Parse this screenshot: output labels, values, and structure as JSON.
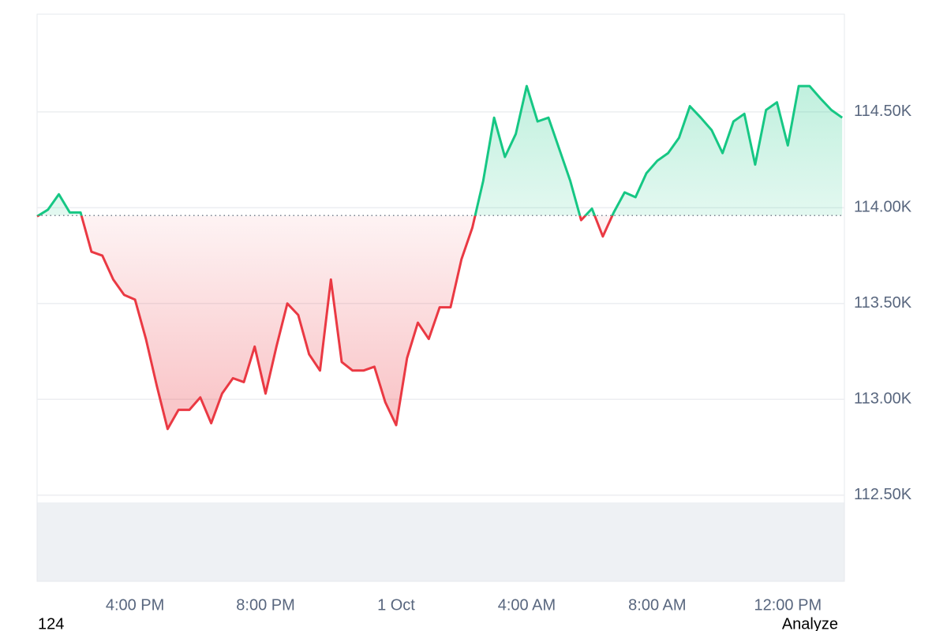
{
  "chart_data": {
    "type": "baseline-line",
    "categories": [
      null,
      null,
      null,
      null,
      null,
      null,
      null,
      null,
      null,
      "4:00 PM",
      null,
      null,
      null,
      null,
      null,
      null,
      null,
      null,
      null,
      null,
      null,
      "8:00 PM",
      null,
      null,
      null,
      null,
      null,
      null,
      null,
      null,
      null,
      null,
      null,
      "1 Oct",
      null,
      null,
      null,
      null,
      null,
      null,
      null,
      null,
      null,
      null,
      null,
      "4:00 AM",
      null,
      null,
      null,
      null,
      null,
      null,
      null,
      null,
      null,
      null,
      null,
      "8:00 AM",
      null,
      null,
      null,
      null,
      null,
      null,
      null,
      null,
      null,
      null,
      null,
      "12:00 PM",
      null,
      null,
      null,
      null,
      null
    ],
    "values": [
      113955,
      113990,
      114070,
      113975,
      113975,
      113770,
      113750,
      113625,
      113545,
      113520,
      113315,
      113070,
      112845,
      112945,
      112945,
      113010,
      112875,
      113030,
      113110,
      113090,
      113275,
      113030,
      113275,
      113500,
      113440,
      113235,
      113150,
      113625,
      113195,
      113150,
      113150,
      113170,
      112985,
      112865,
      113215,
      113400,
      113315,
      113480,
      113480,
      113730,
      113895,
      114140,
      114470,
      114265,
      114385,
      114635,
      114450,
      114470,
      114305,
      114140,
      113935,
      113995,
      113850,
      113975,
      114080,
      114055,
      114180,
      114245,
      114285,
      114365,
      114530,
      114470,
      114405,
      114285,
      114450,
      114490,
      114225,
      114510,
      114550,
      114325,
      114635,
      114635,
      114570,
      114510,
      114470
    ],
    "baseline": 113959,
    "up_color": "#16c784",
    "down_color": "#ea3943",
    "ylim": [
      112050,
      115010
    ],
    "yticks": [
      {
        "value": 112500,
        "label": "112.50K"
      },
      {
        "value": 113000,
        "label": "113.00K"
      },
      {
        "value": 113500,
        "label": "113.50K"
      },
      {
        "value": 114000,
        "label": "114.00K"
      },
      {
        "value": 114500,
        "label": "114.50K"
      }
    ],
    "grid": true
  },
  "footer": {
    "left": "124",
    "right": "Analyze"
  }
}
